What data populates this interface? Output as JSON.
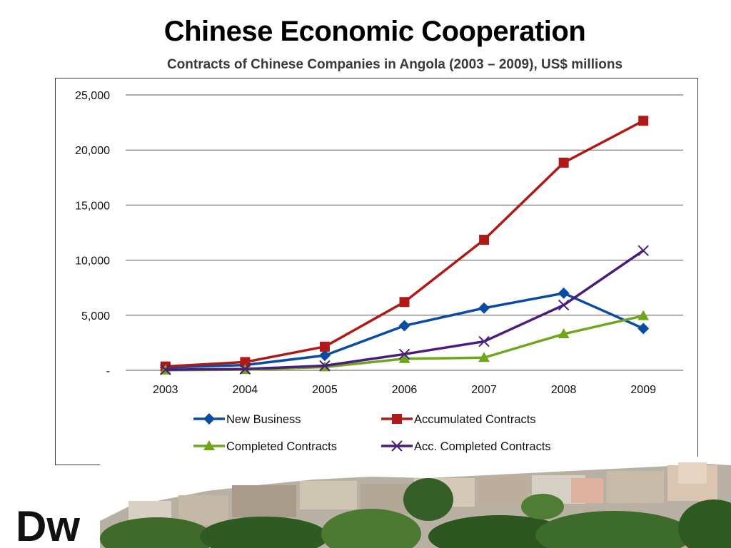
{
  "slide": {
    "title": "Chinese Economic Cooperation",
    "subtitle": "Contracts of Chinese Companies in Angola (2003 – 2009), US$ millions",
    "logo_text": "Dw"
  },
  "chart_data": {
    "type": "line",
    "title": "",
    "xlabel": "",
    "ylabel": "",
    "categories": [
      "2003",
      "2004",
      "2005",
      "2006",
      "2007",
      "2008",
      "2009"
    ],
    "ylim": [
      0,
      25000
    ],
    "yticks": [
      0,
      5000,
      10000,
      15000,
      20000,
      25000
    ],
    "ytick_labels": [
      "-",
      "5,000",
      "10,000",
      "15,000",
      "20,000",
      "25,000"
    ],
    "grid": "horizontal",
    "legend_position": "bottom",
    "series": [
      {
        "name": "New Business",
        "color": "#0a4ca3",
        "marker": "diamond",
        "values": [
          250,
          480,
          1350,
          4050,
          5650,
          7000,
          3800
        ]
      },
      {
        "name": "Accumulated Contracts",
        "color": "#b01a16",
        "marker": "square",
        "values": [
          350,
          750,
          2150,
          6200,
          11850,
          18850,
          22650
        ]
      },
      {
        "name": "Completed Contracts",
        "color": "#6fa61c",
        "marker": "triangle",
        "values": [
          20,
          60,
          300,
          1050,
          1150,
          3300,
          4950
        ]
      },
      {
        "name": "Acc. Completed Contracts",
        "color": "#4a1d7a",
        "marker": "x",
        "values": [
          60,
          120,
          420,
          1470,
          2620,
          5920,
          10870
        ]
      }
    ]
  }
}
